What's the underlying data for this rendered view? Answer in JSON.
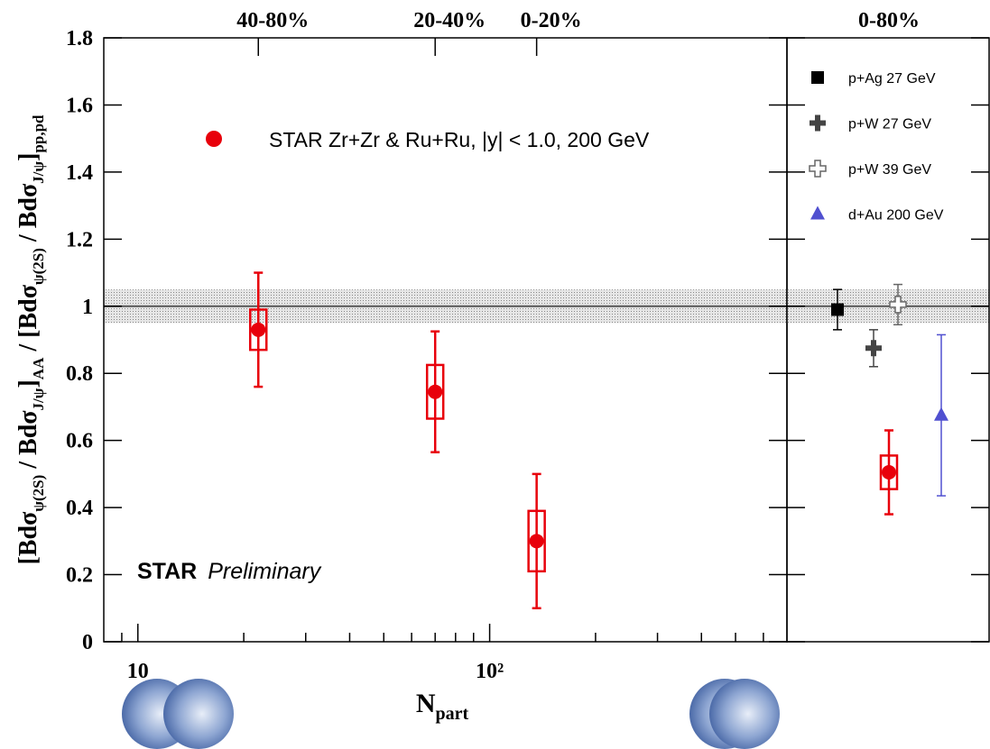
{
  "chart_data": [
    {
      "type": "scatter",
      "xlabel": [
        "N",
        "part"
      ],
      "ylabel": [
        "[Bdσ",
        "ψ(2S)",
        " / Bdσ",
        "J/ψ",
        "]",
        "AA",
        " / [Bdσ",
        "ψ(2S)",
        " / Bdσ",
        "J/ψ",
        "]",
        "pp,pd"
      ],
      "xscale": "log",
      "xlim": [
        8,
        700
      ],
      "xticks": [
        10,
        {
          "value": 100,
          "label": "10²"
        }
      ],
      "xminor": [
        9,
        20,
        30,
        40,
        50,
        60,
        70,
        80,
        90,
        200,
        300,
        400,
        500,
        600
      ],
      "ylim": [
        0,
        1.8
      ],
      "yticks": [
        0,
        0.2,
        0.4,
        0.6,
        0.8,
        1,
        1.2,
        1.4,
        1.6,
        1.8
      ],
      "top_labels": [
        "40-80%",
        "20-40%",
        "0-20%"
      ],
      "reference": {
        "value": 1,
        "band": 0.05
      },
      "annotation": [
        "STAR",
        "Preliminary"
      ],
      "series": [
        {
          "name": "STAR Zr+Zr & Ru+Ru, |y| < 1.0, 200 GeV",
          "color": "#e8000b",
          "x": [
            22,
            70,
            136
          ],
          "values": [
            0.93,
            0.745,
            0.3
          ],
          "stat_errors": [
            0.17,
            0.18,
            0.2
          ],
          "syst_errors": [
            0.06,
            0.08,
            0.09
          ]
        }
      ]
    },
    {
      "type": "scatter",
      "title": "0-80%",
      "ylim": [
        0,
        1.8
      ],
      "yticks": [
        0,
        0.2,
        0.4,
        0.6,
        0.8,
        1,
        1.2,
        1.4,
        1.6,
        1.8
      ],
      "reference": {
        "value": 1,
        "band": 0.05
      },
      "series": [
        {
          "name": "p+Ag 27 GeV",
          "color": "#000000",
          "marker": "square",
          "values": [
            0.99
          ],
          "stat_errors": [
            0.06
          ]
        },
        {
          "name": "p+W 27 GeV",
          "color": "#444444",
          "marker": "cross",
          "values": [
            0.875
          ],
          "stat_errors": [
            0.055
          ]
        },
        {
          "name": "p+W 39 GeV",
          "color": "#666666",
          "marker": "open-cross",
          "values": [
            1.005
          ],
          "stat_errors": [
            0.06
          ]
        },
        {
          "name": "d+Au 200 GeV",
          "color": "#5050d0",
          "marker": "triangle",
          "values": [
            0.675
          ],
          "stat_errors": [
            0.24
          ]
        },
        {
          "color": "#e8000b",
          "marker": "circle",
          "values": [
            0.505
          ],
          "stat_errors": [
            0.125
          ],
          "syst_errors": [
            0.05
          ]
        }
      ]
    }
  ]
}
